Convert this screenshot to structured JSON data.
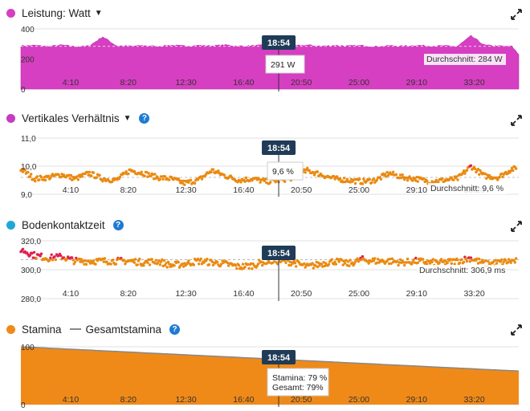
{
  "colors": {
    "power": "#d63fc2",
    "vertical": "#c63bc0",
    "gct": "#1ea8d8",
    "stamina": "#ef8a19",
    "orange_pts": "#ea8a10",
    "red_pts": "#e0204d",
    "cursor_badge": "#1f3b57",
    "help": "#1f7ad4"
  },
  "cursor": {
    "time": "18:54"
  },
  "panels": {
    "power": {
      "title": "Leistung: Watt",
      "tooltip": "291 W",
      "avg_label": "Durchschnitt: 284 W"
    },
    "vertical": {
      "title": "Vertikales Verhältnis",
      "tooltip": "9,6 %",
      "avg_label": "Durchschnitt: 9,6 %",
      "help": "?"
    },
    "gct": {
      "title": "Bodenkontaktzeit",
      "avg_label": "Durchschnitt: 306,9 ms",
      "help": "?"
    },
    "stamina": {
      "title": "Stamina",
      "legend2": "Gesamtstamina",
      "tooltip_line1": "Stamina: 79 %",
      "tooltip_line2": "Gesamt: 79%",
      "help": "?"
    }
  },
  "chart_data": [
    {
      "type": "area",
      "title": "Leistung: Watt",
      "x_ticks": [
        "4:10",
        "8:20",
        "12:30",
        "16:40",
        "20:50",
        "25:00",
        "29:10",
        "33:20"
      ],
      "y_ticks": [
        "400",
        "200",
        "0"
      ],
      "ylim": [
        0,
        400
      ],
      "x_unit": "minutes",
      "xlim": [
        0,
        36.5
      ],
      "series": [
        {
          "name": "Leistung: Watt",
          "x": [
            0,
            1,
            2,
            3,
            4,
            5,
            6,
            7,
            8,
            9,
            10,
            11,
            12,
            13,
            14,
            15,
            16,
            17,
            18,
            19,
            20,
            21,
            22,
            23,
            24,
            25,
            26,
            27,
            28,
            29,
            30,
            31,
            32,
            33,
            34,
            35,
            36,
            36.5
          ],
          "values": [
            287,
            290,
            284,
            292,
            282,
            286,
            348,
            288,
            285,
            289,
            284,
            291,
            286,
            290,
            287,
            293,
            285,
            288,
            291,
            296,
            287,
            292,
            285,
            290,
            286,
            289,
            282,
            288,
            285,
            291,
            286,
            287,
            284,
            353,
            291,
            286,
            284,
            230
          ]
        }
      ],
      "average": 284,
      "cursor_x": 18.9
    },
    {
      "type": "scatter",
      "title": "Vertikales Verhältnis",
      "x_ticks": [
        "4:10",
        "8:20",
        "12:30",
        "16:40",
        "20:50",
        "25:00",
        "29:10",
        "33:20"
      ],
      "y_ticks": [
        "11,0",
        "10,0",
        "9,0"
      ],
      "ylim": [
        9.0,
        11.0
      ],
      "xlim": [
        0,
        36.5
      ],
      "series": [
        {
          "name": "Vertikales Verhältnis",
          "x": [
            0,
            1,
            2,
            3,
            4,
            5,
            6,
            7,
            8,
            9,
            10,
            11,
            12,
            13,
            14,
            15,
            16,
            17,
            18,
            19,
            20,
            21,
            22,
            23,
            24,
            25,
            26,
            27,
            28,
            29,
            30,
            31,
            32,
            33,
            34,
            35,
            36
          ],
          "values": [
            9.9,
            9.55,
            9.6,
            9.7,
            9.55,
            9.75,
            9.55,
            9.5,
            9.85,
            9.75,
            9.6,
            9.55,
            9.4,
            9.5,
            9.85,
            9.65,
            9.5,
            9.55,
            9.45,
            9.5,
            9.6,
            9.85,
            9.7,
            9.55,
            9.5,
            9.45,
            9.5,
            9.75,
            9.6,
            9.55,
            9.45,
            9.5,
            9.55,
            10.0,
            9.65,
            9.6,
            9.9
          ]
        }
      ],
      "average": 9.6,
      "cursor_x": 18.9
    },
    {
      "type": "scatter",
      "title": "Bodenkontaktzeit",
      "x_ticks": [
        "4:10",
        "8:20",
        "12:30",
        "16:40",
        "20:50",
        "25:00",
        "29:10",
        "33:20"
      ],
      "y_ticks": [
        "320,0",
        "300,0",
        "280,0"
      ],
      "ylim": [
        280,
        320
      ],
      "xlim": [
        0,
        36.5
      ],
      "series": [
        {
          "name": "Bodenkontaktzeit",
          "x": [
            0,
            1,
            2,
            3,
            4,
            5,
            6,
            7,
            8,
            9,
            10,
            11,
            12,
            13,
            14,
            15,
            16,
            17,
            18,
            19,
            20,
            21,
            22,
            23,
            24,
            25,
            26,
            27,
            28,
            29,
            30,
            31,
            32,
            33,
            34,
            35,
            36
          ],
          "values": [
            314,
            310,
            308,
            309,
            306,
            306,
            306,
            306,
            306,
            305,
            306,
            303,
            304,
            306,
            305,
            304,
            302,
            303,
            306,
            306,
            305,
            302,
            304,
            306,
            304,
            307,
            306,
            306,
            305,
            306,
            305,
            305,
            306,
            308,
            304,
            305,
            306
          ]
        }
      ],
      "average": 306.9,
      "cursor_x": 18.9
    },
    {
      "type": "area",
      "title": "Stamina",
      "x_ticks": [
        "4:10",
        "8:20",
        "12:30",
        "16:40",
        "20:50",
        "25:00",
        "29:10",
        "33:20"
      ],
      "y_ticks": [
        "100",
        "0"
      ],
      "ylim": [
        0,
        100
      ],
      "xlim": [
        0,
        36.5
      ],
      "series": [
        {
          "name": "Stamina",
          "x": [
            0,
            36.5
          ],
          "values": [
            100,
            58
          ]
        },
        {
          "name": "Gesamtstamina",
          "x": [
            0,
            36.5
          ],
          "values": [
            100,
            58
          ]
        }
      ],
      "cursor_x": 18.9
    }
  ]
}
